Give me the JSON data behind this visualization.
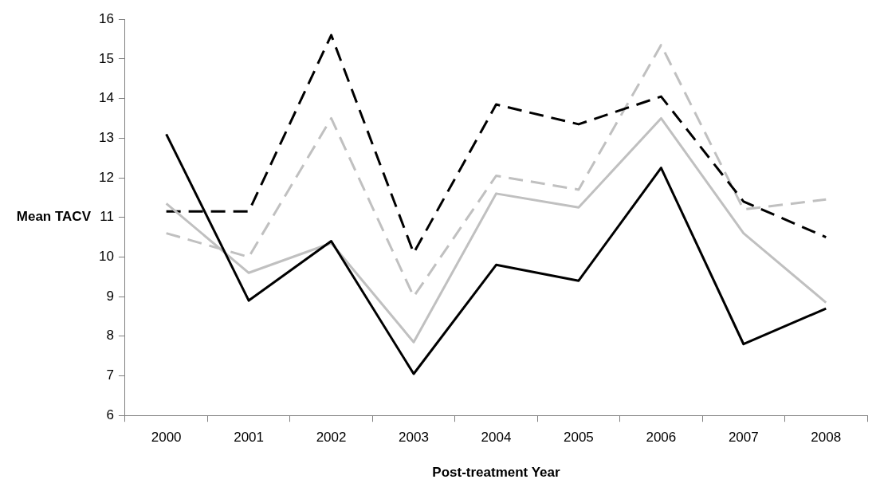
{
  "chart_data": {
    "type": "line",
    "xlabel": "Post-treatment Year",
    "ylabel": "Mean TACV",
    "categories": [
      "2000",
      "2001",
      "2002",
      "2003",
      "2004",
      "2005",
      "2006",
      "2007",
      "2008"
    ],
    "series": [
      {
        "color": "#000000",
        "line_style": "solid",
        "values": [
          13.1,
          8.9,
          10.4,
          7.05,
          9.8,
          9.4,
          12.25,
          7.8,
          8.7
        ]
      },
      {
        "color": "#c0c0c0",
        "line_style": "solid",
        "values": [
          11.35,
          9.6,
          10.35,
          7.85,
          11.6,
          11.25,
          13.5,
          10.6,
          8.85
        ]
      },
      {
        "color": "#000000",
        "line_style": "dashed",
        "values": [
          11.15,
          11.15,
          15.6,
          10.1,
          13.85,
          13.35,
          14.05,
          11.4,
          10.5
        ]
      },
      {
        "color": "#c0c0c0",
        "line_style": "dashed",
        "values": [
          10.6,
          10.0,
          13.5,
          9.0,
          12.05,
          11.7,
          15.35,
          11.2,
          11.45
        ]
      }
    ],
    "ylim": [
      6,
      16
    ],
    "yticks": [
      6,
      7,
      8,
      9,
      10,
      11,
      12,
      13,
      14,
      15,
      16
    ],
    "grid": false,
    "legend": false,
    "marker": "none"
  }
}
